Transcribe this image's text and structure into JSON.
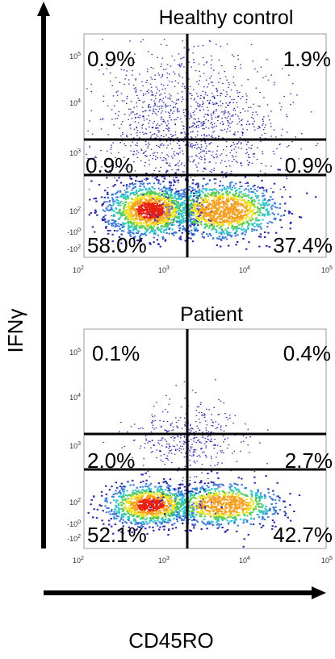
{
  "chart_data": [
    {
      "type": "scatter",
      "title": "Healthy control",
      "xlabel": "CD45RO",
      "ylabel": "IFNγ",
      "x_scale": "log",
      "y_scale": "log",
      "x_ticks": [
        "10^2",
        "10^3",
        "10^4",
        "10^5"
      ],
      "y_ticks": [
        "10^5",
        "10^4",
        "10^3",
        "10^2",
        "-10^0",
        "-10^2"
      ],
      "quadrant_labels": {
        "upper_left": "0.9%",
        "upper_right": "1.9%",
        "middle_left": "0.9%",
        "middle_right": "0.9%",
        "lower_left": "58.0%",
        "lower_right": "37.4%"
      },
      "population_density": "high",
      "colormap": [
        "#2a2aa8",
        "#3a7ad8",
        "#2fc4c8",
        "#55cc55",
        "#f0e020",
        "#f5a020",
        "#e82010"
      ]
    },
    {
      "type": "scatter",
      "title": "Patient",
      "xlabel": "CD45RO",
      "ylabel": "IFNγ",
      "x_scale": "log",
      "y_scale": "log",
      "x_ticks": [
        "10^2",
        "10^3",
        "10^4",
        "10^5"
      ],
      "y_ticks": [
        "10^5",
        "10^4",
        "10^3",
        "10^2",
        "-10^0",
        "-10^2"
      ],
      "quadrant_labels": {
        "upper_left": "0.1%",
        "upper_right": "0.4%",
        "middle_left": "2.0%",
        "middle_right": "2.7%",
        "lower_left": "52.1%",
        "lower_right": "42.7%"
      },
      "population_density": "medium",
      "colormap": [
        "#2a2aa8",
        "#3a7ad8",
        "#2fc4c8",
        "#55cc55",
        "#f0e020",
        "#f5a020",
        "#e82010"
      ]
    }
  ],
  "axes": {
    "y_axis_label": "IFNγ",
    "x_axis_label": "CD45RO"
  },
  "tick_text": {
    "base": "10",
    "neg_base": "-10",
    "exp_5": "5",
    "exp_4": "4",
    "exp_3": "3",
    "exp_2": "2",
    "exp_0": "0"
  }
}
